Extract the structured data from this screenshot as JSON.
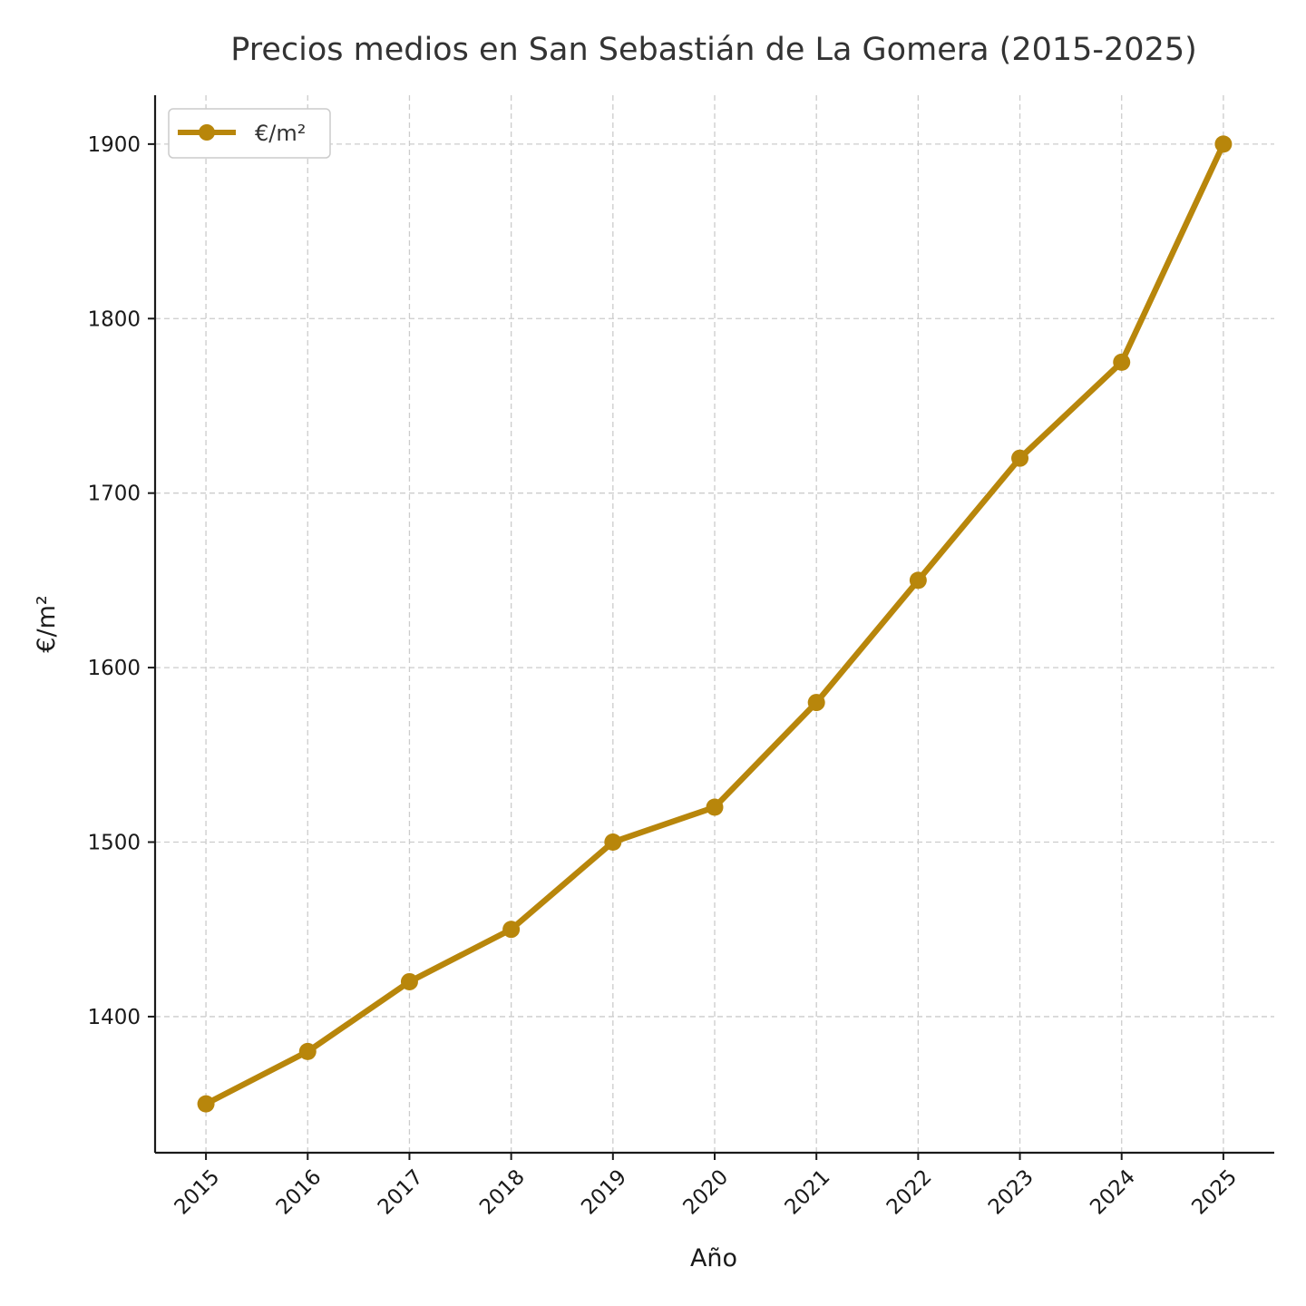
{
  "chart_data": {
    "type": "line",
    "title": "Precios medios en San Sebastián de La Gomera (2015-2025)",
    "xlabel": "Año",
    "ylabel": "€/m²",
    "x": [
      2015,
      2016,
      2017,
      2018,
      2019,
      2020,
      2021,
      2022,
      2023,
      2024,
      2025
    ],
    "series": [
      {
        "name": "€/m²",
        "color": "#b8860b",
        "values": [
          1350,
          1380,
          1420,
          1450,
          1500,
          1520,
          1580,
          1650,
          1720,
          1775,
          1900
        ]
      }
    ],
    "xlim": [
      2014.5,
      2025.5
    ],
    "ylim": [
      1322,
      1928
    ],
    "yticks": [
      1400,
      1500,
      1600,
      1700,
      1800,
      1900
    ],
    "grid": true,
    "legend_position": "top-left"
  }
}
